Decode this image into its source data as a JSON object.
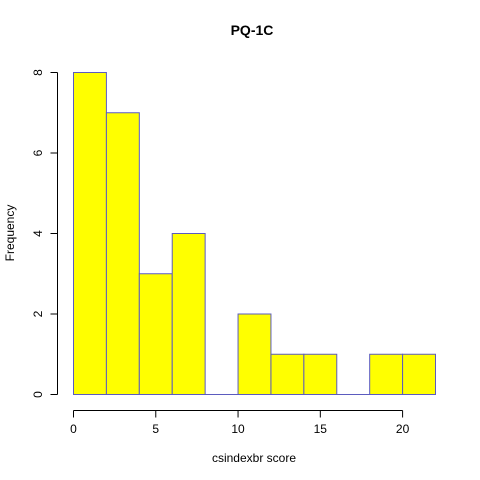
{
  "chart_data": {
    "type": "bar",
    "title": "PQ-1C",
    "xlabel": "csindexbr score",
    "ylabel": "Frequency",
    "bins": [
      {
        "start": 0,
        "end": 2,
        "count": 8
      },
      {
        "start": 2,
        "end": 4,
        "count": 7
      },
      {
        "start": 4,
        "end": 6,
        "count": 3
      },
      {
        "start": 6,
        "end": 8,
        "count": 4
      },
      {
        "start": 8,
        "end": 10,
        "count": 0
      },
      {
        "start": 10,
        "end": 12,
        "count": 2
      },
      {
        "start": 12,
        "end": 14,
        "count": 1
      },
      {
        "start": 14,
        "end": 16,
        "count": 1
      },
      {
        "start": 16,
        "end": 18,
        "count": 0
      },
      {
        "start": 18,
        "end": 20,
        "count": 1
      },
      {
        "start": 20,
        "end": 22,
        "count": 1
      }
    ],
    "xlim": [
      0,
      22
    ],
    "ylim": [
      0,
      8
    ],
    "xticks": [
      0,
      5,
      10,
      15,
      20
    ],
    "yticks": [
      0,
      2,
      4,
      6,
      8
    ],
    "grid": false,
    "bar_fill": "#ffff00",
    "bar_edge": "#5b5bbf"
  }
}
